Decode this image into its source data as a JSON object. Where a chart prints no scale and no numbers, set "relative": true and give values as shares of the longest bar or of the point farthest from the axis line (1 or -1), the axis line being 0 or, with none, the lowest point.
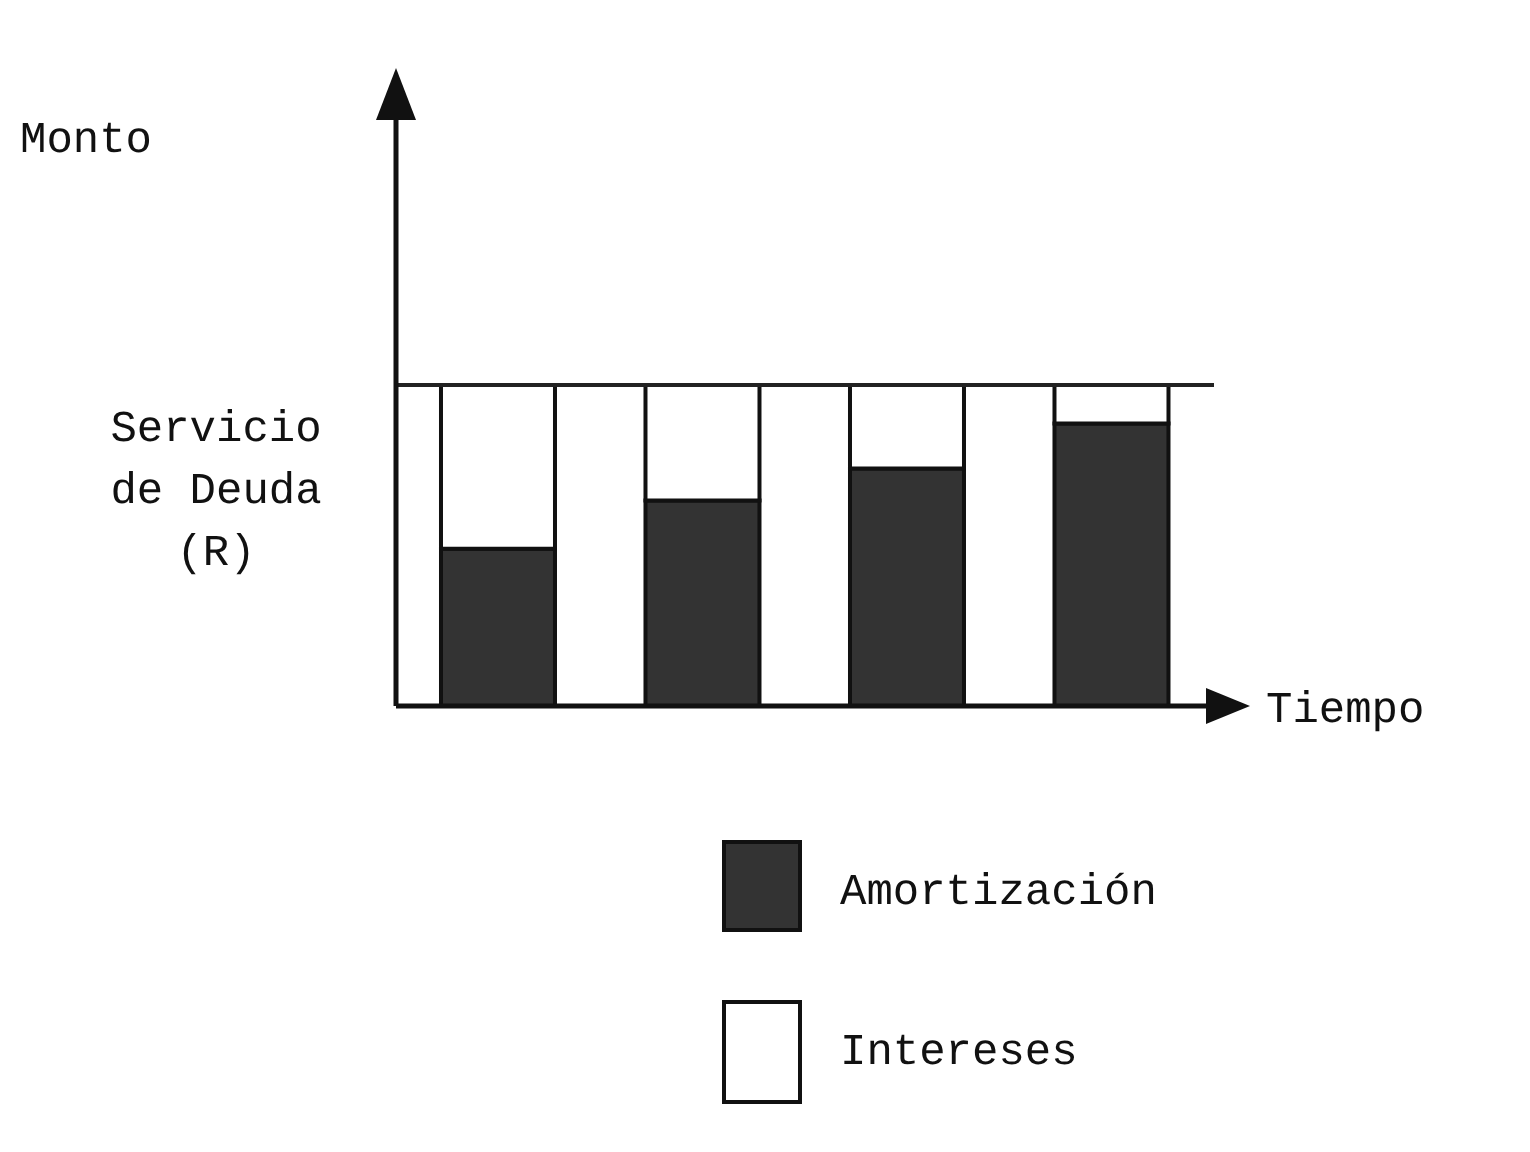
{
  "chart_data": {
    "type": "bar",
    "stacked": true,
    "relative": true,
    "xlabel": "Tiempo",
    "annotations": [
      "Monto"
    ],
    "categories": [
      null,
      null,
      null,
      null
    ],
    "series": [
      {
        "name": "Amortización",
        "color": "#333333",
        "values": [
          0.49,
          0.64,
          0.74,
          0.88
        ]
      },
      {
        "name": "Intereses",
        "color": "#ffffff",
        "values": [
          0.51,
          0.36,
          0.26,
          0.12
        ]
      }
    ],
    "ref_lines": [
      {
        "axis": "y",
        "value": 1,
        "label": "Servicio de Deuda (R)",
        "color": "#222222"
      }
    ],
    "legend": "bottom",
    "grid": false
  }
}
